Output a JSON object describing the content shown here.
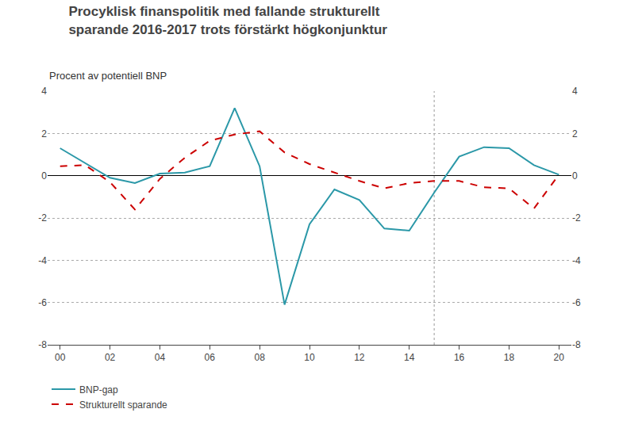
{
  "chart_data": {
    "type": "line",
    "title": "Procyklisk finanspolitik med fallande strukturellt\nsparande 2016-2017 trots förstärkt högkonjunktur",
    "subtitle": "Procent av potentiell BNP",
    "x": [
      2000,
      2001,
      2002,
      2003,
      2004,
      2005,
      2006,
      2007,
      2008,
      2009,
      2010,
      2011,
      2012,
      2013,
      2014,
      2015,
      2016,
      2017,
      2018,
      2019,
      2020
    ],
    "series": [
      {
        "name": "BNP-gap",
        "color": "#2B98A8",
        "line_style": "solid",
        "values": [
          1.3,
          0.6,
          -0.1,
          -0.35,
          0.1,
          0.15,
          0.45,
          3.2,
          0.45,
          -6.1,
          -2.3,
          -0.65,
          -1.15,
          -2.5,
          -2.6,
          -0.8,
          0.9,
          1.35,
          1.3,
          0.5,
          0.05
        ]
      },
      {
        "name": "Strukturellt sparande",
        "color": "#CC0000",
        "line_style": "dashed",
        "values": [
          0.45,
          0.5,
          -0.3,
          -1.6,
          -0.15,
          0.85,
          1.65,
          1.95,
          2.1,
          1.1,
          0.55,
          0.15,
          -0.25,
          -0.6,
          -0.35,
          -0.25,
          -0.25,
          -0.55,
          -0.6,
          -1.55,
          0.05
        ]
      }
    ],
    "xlim": [
      1999.5,
      2020.5
    ],
    "xticks": [
      {
        "value": 2000,
        "label": "00"
      },
      {
        "value": 2002,
        "label": "02"
      },
      {
        "value": 2004,
        "label": "04"
      },
      {
        "value": 2006,
        "label": "06"
      },
      {
        "value": 2008,
        "label": "08"
      },
      {
        "value": 2010,
        "label": "10"
      },
      {
        "value": 2012,
        "label": "12"
      },
      {
        "value": 2014,
        "label": "14"
      },
      {
        "value": 2016,
        "label": "16"
      },
      {
        "value": 2018,
        "label": "18"
      },
      {
        "value": 2020,
        "label": "20"
      }
    ],
    "ylim": [
      -8,
      4
    ],
    "yticks": [
      -8,
      -6,
      -4,
      -2,
      0,
      2,
      4
    ],
    "y2lim": [
      -8,
      4
    ],
    "y2ticks": [
      -8,
      -6,
      -4,
      -2,
      0,
      2,
      4
    ],
    "vline": 2015,
    "grid": true,
    "legend": "bottom"
  }
}
